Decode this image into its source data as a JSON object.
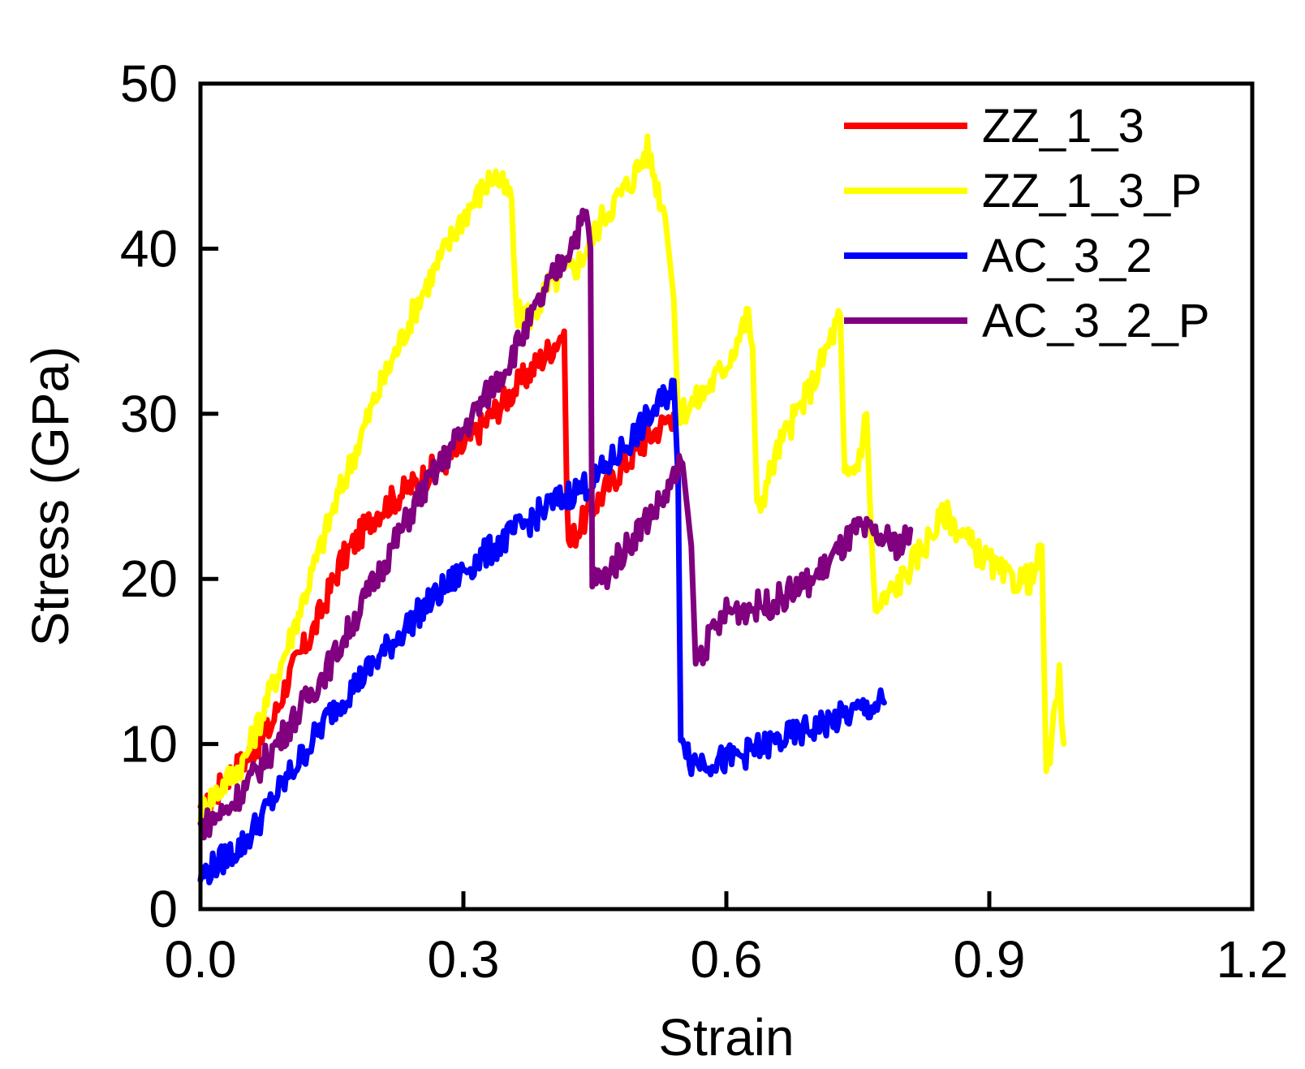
{
  "chart_data": {
    "type": "line",
    "title": "",
    "xlabel": "Strain",
    "ylabel": "Stress (GPa)",
    "xlim": [
      0.0,
      1.2
    ],
    "ylim": [
      0,
      50
    ],
    "xticks": [
      "0.0",
      "0.3",
      "0.6",
      "0.9",
      "1.2"
    ],
    "yticks": [
      "0",
      "10",
      "20",
      "30",
      "40",
      "50"
    ],
    "grid": false,
    "legend_position": "top-right",
    "series": [
      {
        "name": "ZZ_1_3",
        "color": "#ff0000",
        "points": [
          [
            0.0,
            5.5
          ],
          [
            0.03,
            8
          ],
          [
            0.05,
            9
          ],
          [
            0.08,
            11
          ],
          [
            0.1,
            14
          ],
          [
            0.13,
            17
          ],
          [
            0.16,
            21
          ],
          [
            0.2,
            24
          ],
          [
            0.25,
            26
          ],
          [
            0.3,
            28
          ],
          [
            0.35,
            31
          ],
          [
            0.4,
            34
          ],
          [
            0.415,
            35
          ],
          [
            0.418,
            26
          ],
          [
            0.42,
            22
          ],
          [
            0.43,
            23
          ],
          [
            0.47,
            26
          ],
          [
            0.5,
            28
          ],
          [
            0.52,
            29
          ],
          [
            0.54,
            30
          ]
        ]
      },
      {
        "name": "ZZ_1_3_P",
        "color": "#ffff00",
        "points": [
          [
            0.0,
            6
          ],
          [
            0.05,
            9
          ],
          [
            0.1,
            16
          ],
          [
            0.15,
            24
          ],
          [
            0.2,
            31
          ],
          [
            0.25,
            37
          ],
          [
            0.3,
            42
          ],
          [
            0.335,
            44.5
          ],
          [
            0.355,
            43
          ],
          [
            0.36,
            36
          ],
          [
            0.38,
            36
          ],
          [
            0.4,
            38
          ],
          [
            0.43,
            39
          ],
          [
            0.46,
            42
          ],
          [
            0.49,
            44
          ],
          [
            0.51,
            46
          ],
          [
            0.53,
            42
          ],
          [
            0.54,
            37
          ],
          [
            0.545,
            30
          ],
          [
            0.57,
            31
          ],
          [
            0.6,
            33
          ],
          [
            0.625,
            36
          ],
          [
            0.63,
            34
          ],
          [
            0.635,
            24
          ],
          [
            0.66,
            28
          ],
          [
            0.7,
            32
          ],
          [
            0.73,
            36
          ],
          [
            0.735,
            26
          ],
          [
            0.75,
            27
          ],
          [
            0.76,
            30
          ],
          [
            0.765,
            23
          ],
          [
            0.77,
            18
          ],
          [
            0.8,
            20
          ],
          [
            0.85,
            24
          ],
          [
            0.88,
            22
          ],
          [
            0.92,
            20
          ],
          [
            0.95,
            20
          ],
          [
            0.96,
            22
          ],
          [
            0.965,
            7.5
          ],
          [
            0.98,
            14
          ],
          [
            0.985,
            10
          ]
        ]
      },
      {
        "name": "AC_3_2",
        "color": "#0000ff",
        "points": [
          [
            0.0,
            2
          ],
          [
            0.05,
            4
          ],
          [
            0.1,
            8
          ],
          [
            0.15,
            12
          ],
          [
            0.2,
            15
          ],
          [
            0.25,
            18
          ],
          [
            0.3,
            20.5
          ],
          [
            0.35,
            22.5
          ],
          [
            0.4,
            24.5
          ],
          [
            0.45,
            26
          ],
          [
            0.5,
            29
          ],
          [
            0.53,
            31
          ],
          [
            0.54,
            32
          ],
          [
            0.545,
            26
          ],
          [
            0.548,
            11
          ],
          [
            0.56,
            9
          ],
          [
            0.6,
            9
          ],
          [
            0.65,
            10
          ],
          [
            0.7,
            11
          ],
          [
            0.75,
            12
          ],
          [
            0.78,
            12.5
          ]
        ]
      },
      {
        "name": "AC_3_2_P",
        "color": "#800080",
        "points": [
          [
            0.0,
            5
          ],
          [
            0.03,
            6
          ],
          [
            0.06,
            8
          ],
          [
            0.1,
            11
          ],
          [
            0.15,
            15
          ],
          [
            0.2,
            20
          ],
          [
            0.25,
            25
          ],
          [
            0.3,
            29
          ],
          [
            0.35,
            33
          ],
          [
            0.4,
            38
          ],
          [
            0.44,
            42
          ],
          [
            0.445,
            40
          ],
          [
            0.447,
            20
          ],
          [
            0.46,
            20
          ],
          [
            0.5,
            23
          ],
          [
            0.53,
            25
          ],
          [
            0.55,
            27
          ],
          [
            0.56,
            22
          ],
          [
            0.565,
            15
          ],
          [
            0.6,
            18
          ],
          [
            0.65,
            18.5
          ],
          [
            0.7,
            20
          ],
          [
            0.75,
            23
          ],
          [
            0.8,
            22
          ],
          [
            0.81,
            23
          ]
        ]
      }
    ]
  }
}
